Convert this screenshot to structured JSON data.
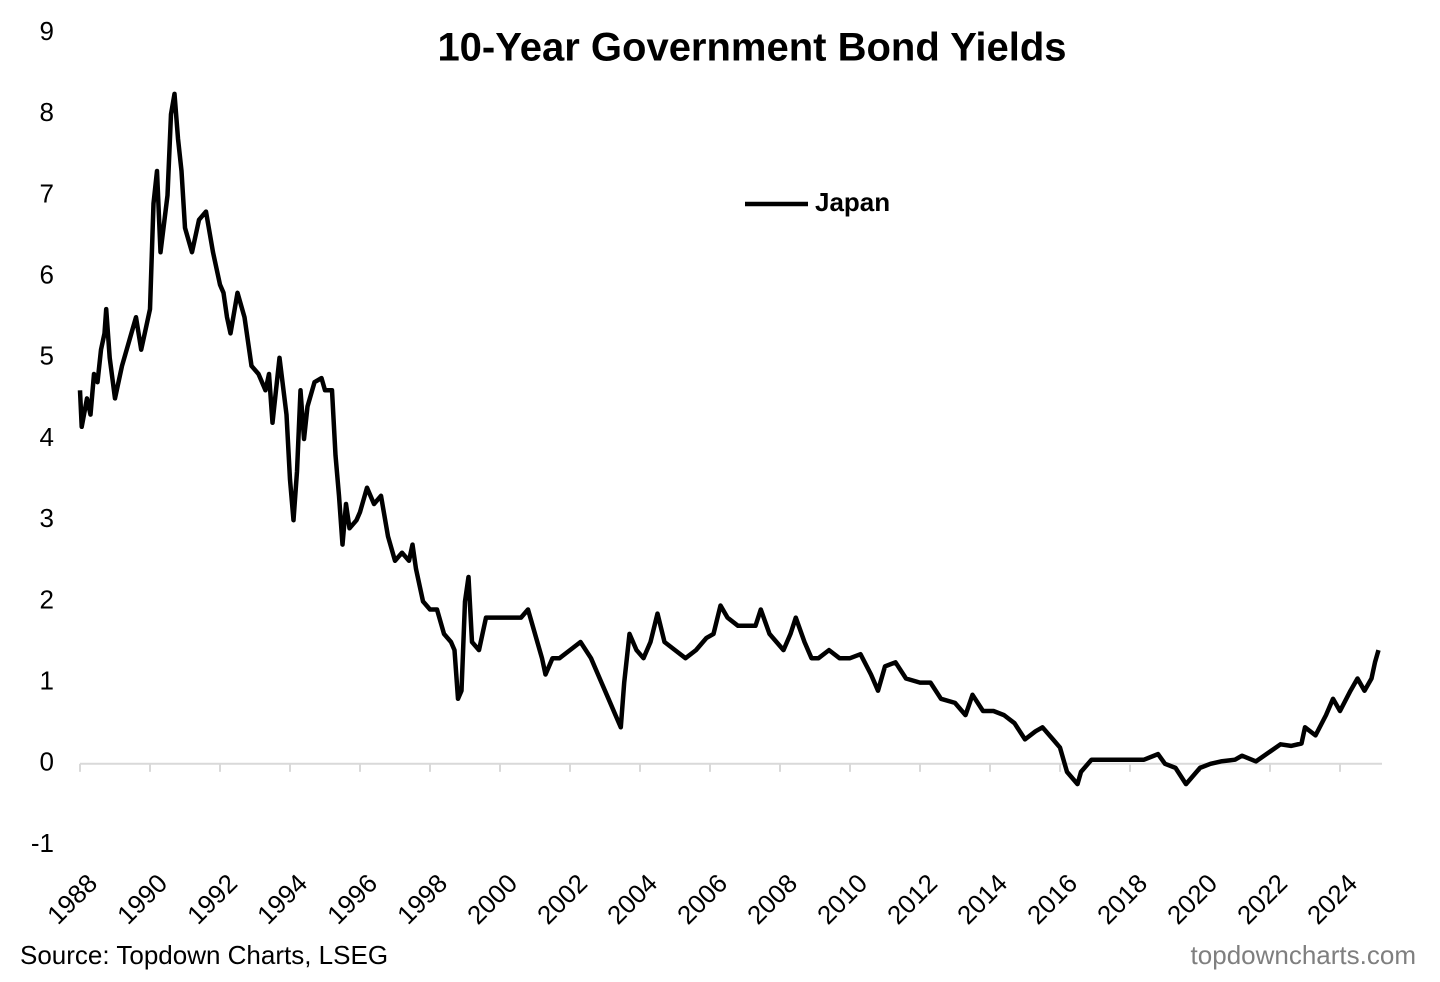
{
  "chart_data": {
    "type": "line",
    "title": "10-Year Government Bond Yields",
    "source": "Source: Topdown Charts, LSEG",
    "watermark": "topdowncharts.com",
    "legend_position": "top-center",
    "grid": false,
    "xlim": [
      1988,
      2025.2
    ],
    "xticks": [
      1988,
      1990,
      1992,
      1994,
      1996,
      1998,
      2000,
      2002,
      2004,
      2006,
      2008,
      2010,
      2012,
      2014,
      2016,
      2018,
      2020,
      2022,
      2024
    ],
    "ylim": [
      -1,
      9
    ],
    "yticks": [
      -1,
      0,
      1,
      2,
      3,
      4,
      5,
      6,
      7,
      8,
      9
    ],
    "x": [
      1988.0,
      1988.05,
      1988.2,
      1988.3,
      1988.4,
      1988.5,
      1988.6,
      1988.7,
      1988.75,
      1988.85,
      1989.0,
      1989.2,
      1989.4,
      1989.6,
      1989.75,
      1989.9,
      1990.0,
      1990.1,
      1990.2,
      1990.3,
      1990.5,
      1990.6,
      1990.7,
      1990.8,
      1990.9,
      1991.0,
      1991.2,
      1991.4,
      1991.6,
      1991.8,
      1992.0,
      1992.1,
      1992.2,
      1992.3,
      1992.5,
      1992.7,
      1992.9,
      1993.1,
      1993.3,
      1993.4,
      1993.5,
      1993.6,
      1993.7,
      1993.9,
      1994.0,
      1994.1,
      1994.2,
      1994.3,
      1994.4,
      1994.5,
      1994.7,
      1994.9,
      1995.0,
      1995.2,
      1995.3,
      1995.4,
      1995.5,
      1995.6,
      1995.7,
      1995.9,
      1996.0,
      1996.2,
      1996.4,
      1996.6,
      1996.8,
      1997.0,
      1997.2,
      1997.4,
      1997.5,
      1997.6,
      1997.8,
      1998.0,
      1998.2,
      1998.4,
      1998.6,
      1998.7,
      1998.8,
      1998.9,
      1999.0,
      1999.1,
      1999.2,
      1999.4,
      1999.6,
      1999.8,
      2000.0,
      2000.3,
      2000.6,
      2000.8,
      2001.0,
      2001.2,
      2001.3,
      2001.5,
      2001.7,
      2002.0,
      2002.3,
      2002.6,
      2002.9,
      2003.1,
      2003.3,
      2003.45,
      2003.55,
      2003.7,
      2003.9,
      2004.1,
      2004.3,
      2004.5,
      2004.7,
      2005.0,
      2005.3,
      2005.6,
      2005.9,
      2006.1,
      2006.3,
      2006.5,
      2006.8,
      2007.0,
      2007.3,
      2007.45,
      2007.7,
      2007.9,
      2008.1,
      2008.3,
      2008.45,
      2008.7,
      2008.9,
      2009.1,
      2009.4,
      2009.7,
      2010.0,
      2010.3,
      2010.6,
      2010.8,
      2011.0,
      2011.3,
      2011.6,
      2012.0,
      2012.3,
      2012.6,
      2013.0,
      2013.3,
      2013.5,
      2013.8,
      2014.1,
      2014.4,
      2014.7,
      2015.0,
      2015.3,
      2015.5,
      2015.8,
      2016.0,
      2016.2,
      2016.5,
      2016.6,
      2016.9,
      2017.3,
      2017.7,
      2018.0,
      2018.4,
      2018.8,
      2019.0,
      2019.3,
      2019.6,
      2019.8,
      2020.0,
      2020.3,
      2020.6,
      2021.0,
      2021.2,
      2021.6,
      2022.0,
      2022.3,
      2022.6,
      2022.9,
      2023.0,
      2023.3,
      2023.6,
      2023.8,
      2024.0,
      2024.3,
      2024.5,
      2024.7,
      2024.9,
      2025.0,
      2025.1
    ],
    "series": [
      {
        "name": "Japan",
        "color": "#000000",
        "values": [
          4.6,
          4.15,
          4.5,
          4.3,
          4.8,
          4.7,
          5.1,
          5.3,
          5.6,
          5.0,
          4.5,
          4.9,
          5.2,
          5.5,
          5.1,
          5.4,
          5.6,
          6.9,
          7.3,
          6.3,
          7.0,
          8.0,
          8.25,
          7.7,
          7.3,
          6.6,
          6.3,
          6.7,
          6.8,
          6.3,
          5.9,
          5.8,
          5.5,
          5.3,
          5.8,
          5.5,
          4.9,
          4.8,
          4.6,
          4.8,
          4.2,
          4.6,
          5.0,
          4.3,
          3.5,
          3.0,
          3.6,
          4.6,
          4.0,
          4.4,
          4.7,
          4.75,
          4.6,
          4.6,
          3.8,
          3.3,
          2.7,
          3.2,
          2.9,
          3.0,
          3.1,
          3.4,
          3.2,
          3.3,
          2.8,
          2.5,
          2.6,
          2.5,
          2.7,
          2.4,
          2.0,
          1.9,
          1.9,
          1.6,
          1.5,
          1.4,
          0.8,
          0.9,
          2.0,
          2.3,
          1.5,
          1.4,
          1.8,
          1.8,
          1.8,
          1.8,
          1.8,
          1.9,
          1.6,
          1.3,
          1.1,
          1.3,
          1.3,
          1.4,
          1.5,
          1.3,
          1.0,
          0.8,
          0.6,
          0.45,
          1.0,
          1.6,
          1.4,
          1.3,
          1.5,
          1.85,
          1.5,
          1.4,
          1.3,
          1.4,
          1.55,
          1.6,
          1.95,
          1.8,
          1.7,
          1.7,
          1.7,
          1.9,
          1.6,
          1.5,
          1.4,
          1.6,
          1.8,
          1.5,
          1.3,
          1.3,
          1.4,
          1.3,
          1.3,
          1.35,
          1.1,
          0.9,
          1.2,
          1.25,
          1.05,
          1.0,
          1.0,
          0.8,
          0.75,
          0.6,
          0.85,
          0.65,
          0.65,
          0.6,
          0.5,
          0.3,
          0.4,
          0.45,
          0.3,
          0.2,
          -0.1,
          -0.25,
          -0.1,
          0.05,
          0.05,
          0.05,
          0.05,
          0.05,
          0.12,
          0.0,
          -0.05,
          -0.25,
          -0.15,
          -0.05,
          0.0,
          0.03,
          0.05,
          0.1,
          0.03,
          0.15,
          0.24,
          0.22,
          0.25,
          0.45,
          0.35,
          0.6,
          0.8,
          0.65,
          0.9,
          1.05,
          0.9,
          1.05,
          1.25,
          1.4
        ]
      }
    ]
  }
}
